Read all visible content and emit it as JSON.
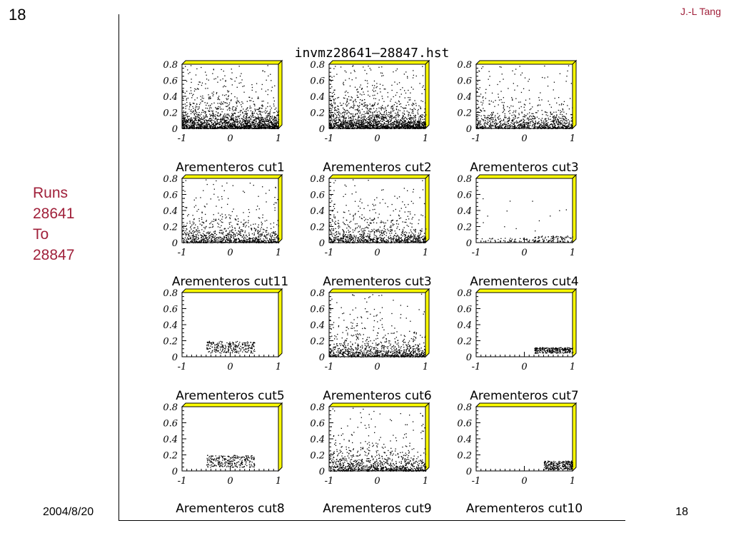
{
  "slide": {
    "number": "18",
    "author": "J.-L Tang",
    "runs_label": [
      "Runs",
      "28641",
      "To",
      "28847"
    ],
    "date": "2004/8/20",
    "page": "18"
  },
  "figure": {
    "title": "invmz28641–28847.hst",
    "accent_color": "#ffff00",
    "y_ticks": [
      "0.8",
      "0.6",
      "0.4",
      "0.2",
      "0"
    ],
    "x_ticks": [
      "-1",
      "0",
      "1"
    ]
  },
  "chart_data": [
    {
      "type": "scatter",
      "title": "",
      "xlim": [
        -1,
        1
      ],
      "ylim": [
        0,
        0.8
      ],
      "density": "high",
      "x_range": [
        -1,
        1
      ],
      "concentration": "low y, right side"
    },
    {
      "type": "scatter",
      "title": "",
      "xlim": [
        -1,
        1
      ],
      "ylim": [
        0,
        0.8
      ],
      "density": "high",
      "x_range": [
        -1,
        1
      ],
      "concentration": "low y, right side"
    },
    {
      "type": "scatter",
      "title": "",
      "xlim": [
        -1,
        1
      ],
      "ylim": [
        0,
        0.8
      ],
      "density": "medium",
      "x_range": [
        -1,
        1
      ],
      "concentration": "low y, right side"
    },
    {
      "type": "scatter",
      "title": "Arementeros cut1",
      "xlim": [
        -1,
        1
      ],
      "ylim": [
        0,
        0.8
      ],
      "density": "medium",
      "x_range": [
        -1,
        1
      ],
      "concentration": "low y, right side"
    },
    {
      "type": "scatter",
      "title": "Arementeros cut2",
      "xlim": [
        -1,
        1
      ],
      "ylim": [
        0,
        0.8
      ],
      "density": "medium",
      "x_range": [
        -1,
        1
      ],
      "concentration": "low y, right side"
    },
    {
      "type": "scatter",
      "title": "Arementeros cut3",
      "xlim": [
        -1,
        1
      ],
      "ylim": [
        0,
        0.8
      ],
      "density": "sparse",
      "x_range": [
        -1,
        1
      ],
      "concentration": "y below 0.1, x above 0.2"
    },
    {
      "type": "scatter",
      "title": "Arementeros cut11",
      "xlim": [
        -1,
        1
      ],
      "ylim": [
        0,
        0.8
      ],
      "density": "band",
      "x_range": [
        -0.5,
        0.5
      ],
      "y_range": [
        0.05,
        0.2
      ]
    },
    {
      "type": "scatter",
      "title": "Arementeros cut3",
      "xlim": [
        -1,
        1
      ],
      "ylim": [
        0,
        0.8
      ],
      "density": "medium",
      "x_range": [
        -1,
        1
      ],
      "concentration": "low y, right side"
    },
    {
      "type": "scatter",
      "title": "Arementeros cut4",
      "xlim": [
        -1,
        1
      ],
      "ylim": [
        0,
        0.8
      ],
      "density": "band",
      "x_range": [
        0.2,
        1
      ],
      "y_range": [
        0.05,
        0.12
      ]
    },
    {
      "type": "scatter",
      "title": "Arementeros cut5",
      "xlim": [
        -1,
        1
      ],
      "ylim": [
        0,
        0.8
      ],
      "density": "band",
      "x_range": [
        -0.5,
        0.5
      ],
      "y_range": [
        0.05,
        0.2
      ]
    },
    {
      "type": "scatter",
      "title": "Arementeros cut6",
      "xlim": [
        -1,
        1
      ],
      "ylim": [
        0,
        0.8
      ],
      "density": "medium",
      "x_range": [
        -1,
        1
      ],
      "concentration": "low y, right side"
    },
    {
      "type": "scatter",
      "title": "Arementeros cut7",
      "xlim": [
        -1,
        1
      ],
      "ylim": [
        0,
        0.8
      ],
      "density": "band",
      "x_range": [
        0.4,
        1
      ],
      "y_range": [
        0.02,
        0.13
      ]
    }
  ],
  "bottom_labels": [
    "Arementeros cut8",
    "Arementeros cut9",
    "Arementeros cut10"
  ]
}
